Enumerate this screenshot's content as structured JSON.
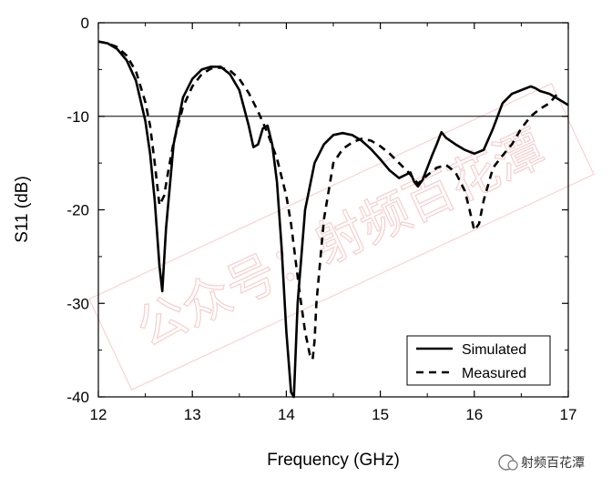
{
  "chart_data": {
    "type": "line",
    "xlabel": "Frequency (GHz)",
    "ylabel": "S11 (dB)",
    "xlim": [
      12,
      17
    ],
    "ylim": [
      -40,
      0
    ],
    "xticks": [
      "12",
      "13",
      "14",
      "15",
      "16",
      "17"
    ],
    "yticks": [
      "0",
      "-10",
      "-20",
      "-30",
      "-40"
    ],
    "reference_line": -10,
    "legend": {
      "placement": "bottom-right"
    },
    "series": [
      {
        "name": "Simulated",
        "style": "solid",
        "x": [
          12.0,
          12.1,
          12.2,
          12.3,
          12.4,
          12.5,
          12.55,
          12.6,
          12.65,
          12.68,
          12.72,
          12.8,
          12.9,
          13.0,
          13.1,
          13.2,
          13.3,
          13.4,
          13.5,
          13.6,
          13.65,
          13.7,
          13.75,
          13.8,
          13.85,
          13.9,
          13.95,
          14.0,
          14.05,
          14.08,
          14.12,
          14.2,
          14.3,
          14.4,
          14.5,
          14.6,
          14.7,
          14.8,
          14.9,
          15.0,
          15.1,
          15.2,
          15.28,
          15.32,
          15.36,
          15.4,
          15.45,
          15.5,
          15.55,
          15.6,
          15.65,
          15.7,
          15.8,
          15.9,
          16.0,
          16.1,
          16.2,
          16.3,
          16.4,
          16.5,
          16.6,
          16.65,
          16.7,
          16.8,
          16.9,
          17.0
        ],
        "y": [
          -2,
          -2.2,
          -2.8,
          -4,
          -6.2,
          -10.5,
          -14,
          -19,
          -26,
          -28.7,
          -22,
          -13,
          -8,
          -6,
          -5,
          -4.7,
          -4.7,
          -5.5,
          -7.2,
          -11,
          -13.3,
          -13,
          -11.3,
          -11,
          -13,
          -17,
          -24,
          -33,
          -39.5,
          -40,
          -30,
          -20,
          -15,
          -13,
          -12,
          -11.8,
          -12,
          -12.6,
          -13.5,
          -14.6,
          -15.8,
          -16.6,
          -16.2,
          -16,
          -17,
          -17.5,
          -16.8,
          -15.5,
          -14.2,
          -13,
          -11.7,
          -12.3,
          -13,
          -13.6,
          -14,
          -13.6,
          -11.3,
          -8.6,
          -7.6,
          -7.2,
          -6.8,
          -7,
          -7.3,
          -7.6,
          -8.2,
          -8.8
        ]
      },
      {
        "name": "Measured",
        "style": "dashed",
        "x": [
          12.0,
          12.1,
          12.2,
          12.3,
          12.4,
          12.5,
          12.55,
          12.6,
          12.65,
          12.7,
          12.75,
          12.8,
          12.9,
          13.0,
          13.1,
          13.2,
          13.3,
          13.4,
          13.5,
          13.6,
          13.7,
          13.8,
          13.9,
          14.0,
          14.05,
          14.1,
          14.15,
          14.2,
          14.25,
          14.28,
          14.3,
          14.32,
          14.4,
          14.5,
          14.6,
          14.7,
          14.8,
          14.9,
          15.0,
          15.1,
          15.2,
          15.3,
          15.35,
          15.4,
          15.5,
          15.6,
          15.7,
          15.8,
          15.9,
          15.95,
          16.0,
          16.05,
          16.1,
          16.2,
          16.3,
          16.4,
          16.5,
          16.6,
          16.7,
          16.8,
          16.9
        ],
        "y": [
          -2,
          -2.2,
          -2.6,
          -3.5,
          -5.2,
          -8.5,
          -11,
          -15,
          -19.5,
          -18.5,
          -15.5,
          -12.8,
          -9,
          -6.8,
          -5.5,
          -4.9,
          -4.8,
          -5.1,
          -6,
          -7.5,
          -9.5,
          -11.8,
          -14.5,
          -18.5,
          -21.5,
          -25.5,
          -29.5,
          -33,
          -35.5,
          -36,
          -34,
          -30,
          -21,
          -15,
          -13.5,
          -12.8,
          -12.4,
          -12.6,
          -13.2,
          -14,
          -15,
          -16,
          -16.6,
          -17.2,
          -16.3,
          -15.5,
          -15.2,
          -16,
          -18,
          -20,
          -22.2,
          -21.5,
          -19,
          -15.5,
          -14.2,
          -13,
          -11.3,
          -10,
          -9.2,
          -8.6,
          -7.4
        ]
      }
    ]
  },
  "watermark": {
    "text": "公众号：射频百花潭",
    "brand": "射频百花潭",
    "color": "#d9534f"
  }
}
